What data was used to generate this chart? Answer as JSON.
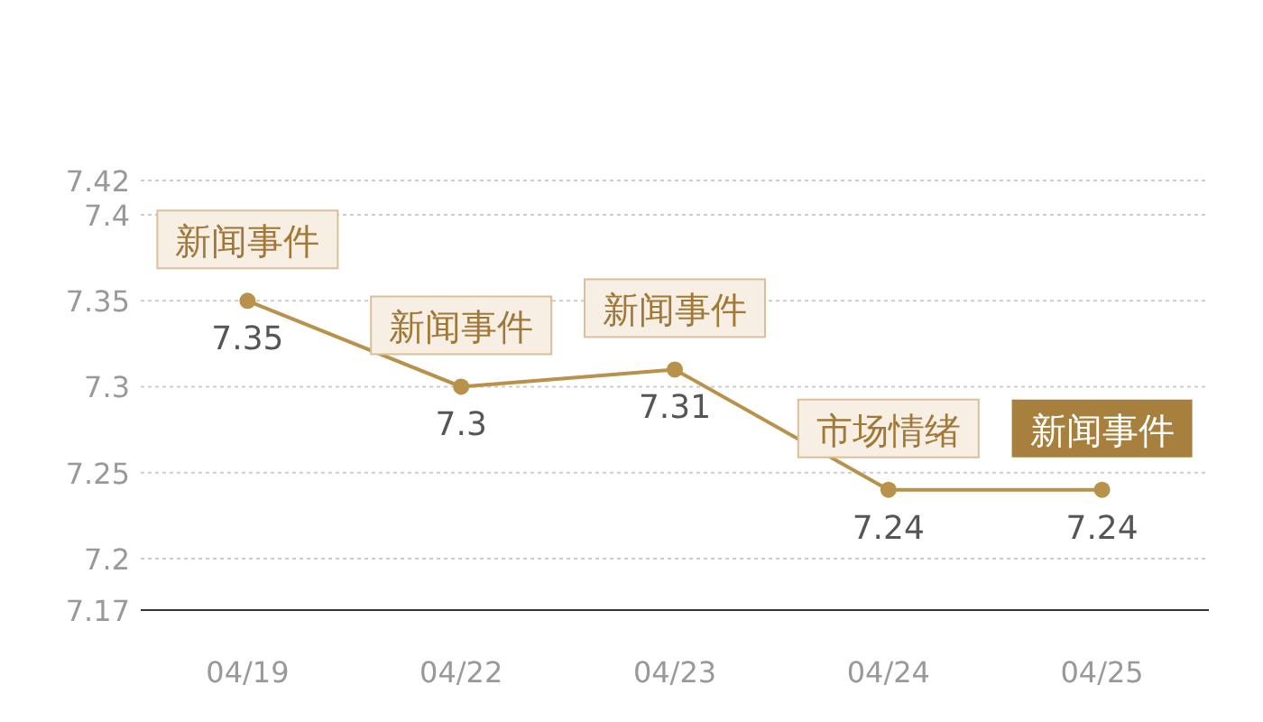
{
  "chart_data": {
    "type": "line",
    "categories": [
      "04/19",
      "04/22",
      "04/23",
      "04/24",
      "04/25"
    ],
    "series": [
      {
        "color": "#b8924a",
        "values": [
          7.35,
          7.3,
          7.31,
          7.24,
          7.24
        ]
      }
    ],
    "ylim": [
      7.17,
      7.42
    ],
    "yticks": [
      7.17,
      7.2,
      7.25,
      7.3,
      7.35,
      7.4,
      7.42
    ],
    "grid": "y",
    "marker": "circle",
    "line_style": "solid",
    "data_labels": true,
    "annotations": [
      {
        "text": "新闻事件",
        "x": "04/19",
        "y": 7.35
      },
      {
        "text": "新闻事件",
        "x": "04/22",
        "y": 7.3
      },
      {
        "text": "新闻事件",
        "x": "04/23",
        "y": 7.31
      },
      {
        "text": "市场情绪",
        "x": "04/24",
        "y": 7.24
      },
      {
        "text": "新闻事件",
        "x": "04/25",
        "y": 7.24
      }
    ]
  }
}
